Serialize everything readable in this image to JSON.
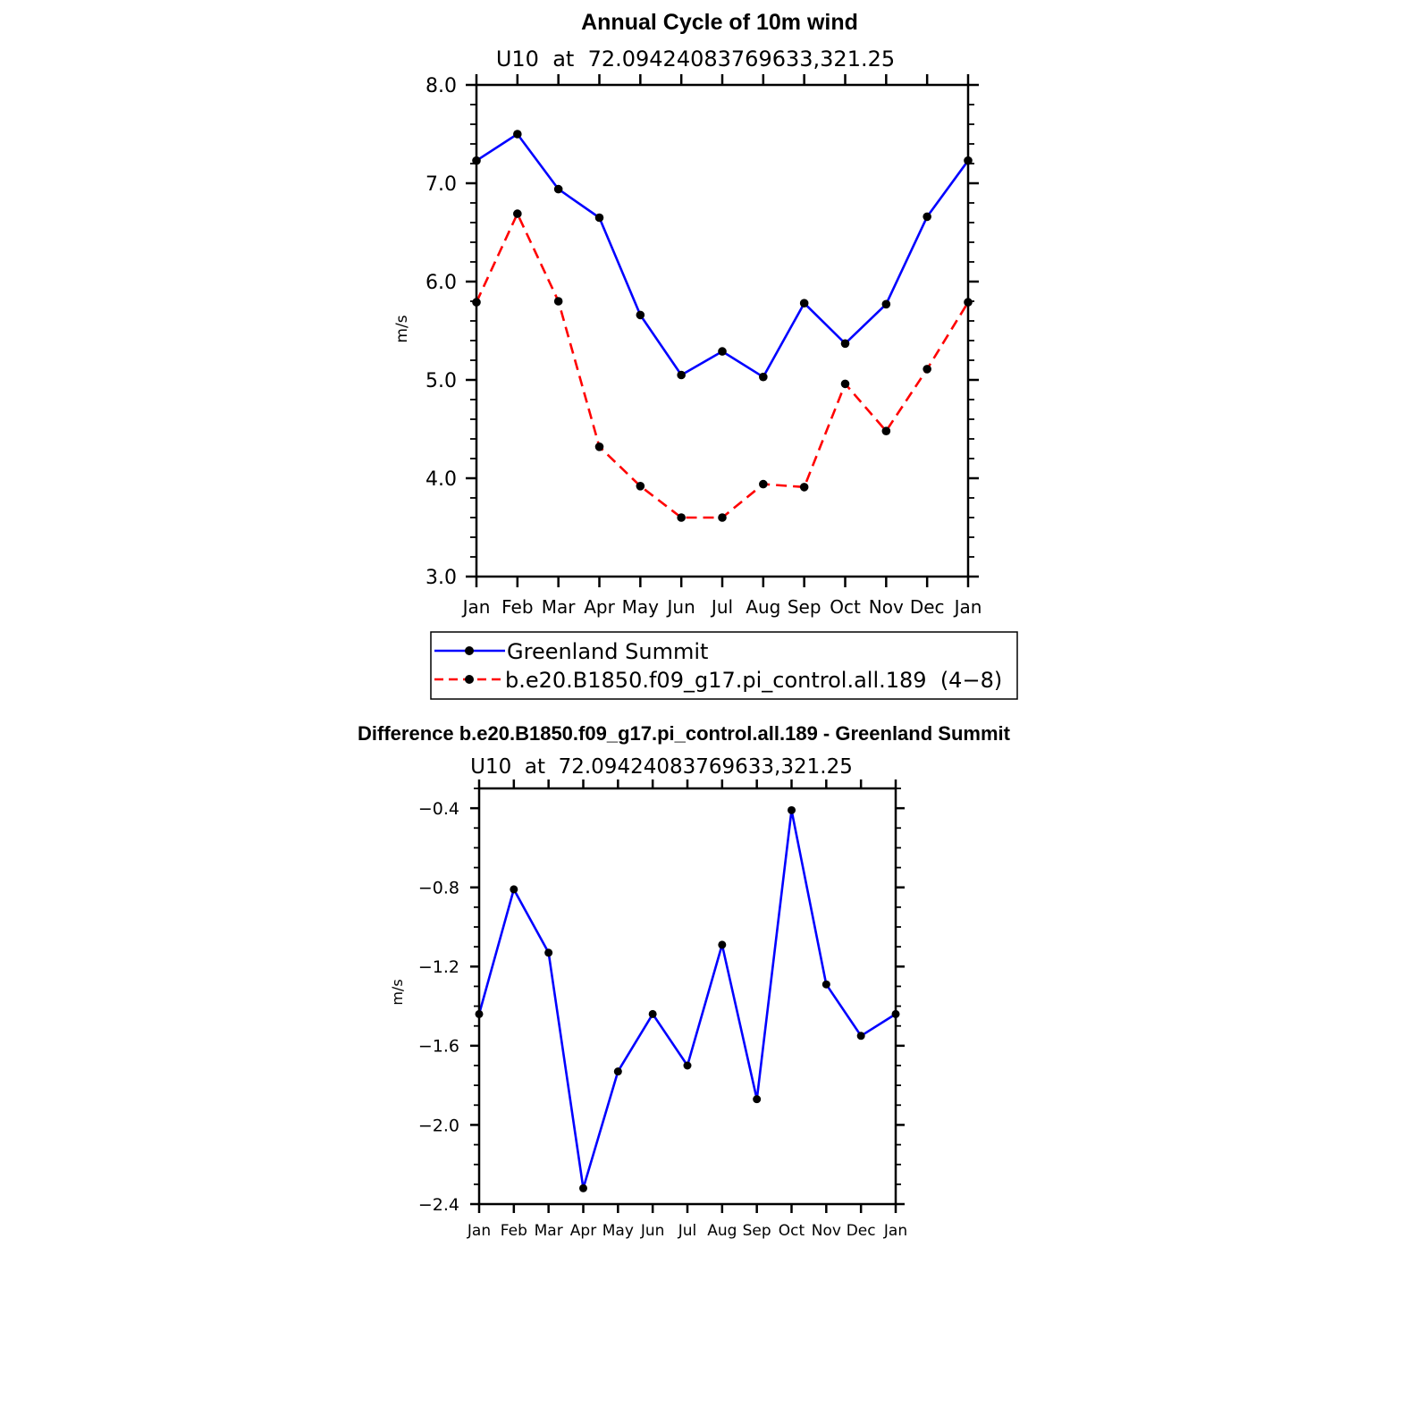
{
  "chart_data": [
    {
      "type": "line",
      "title": "Annual Cycle of 10m wind",
      "subtitle": "U10  at  72.09424083769633,321.25",
      "xlabel": "",
      "ylabel": "m/s",
      "ylim": [
        3.0,
        8.0
      ],
      "yticks": [
        "3.0",
        "4.0",
        "5.0",
        "6.0",
        "7.0",
        "8.0"
      ],
      "ytick_values": [
        3.0,
        4.0,
        5.0,
        6.0,
        7.0,
        8.0
      ],
      "categories": [
        "Jan",
        "Feb",
        "Mar",
        "Apr",
        "May",
        "Jun",
        "Jul",
        "Aug",
        "Sep",
        "Oct",
        "Nov",
        "Dec",
        "Jan"
      ],
      "legend_position": "bottom",
      "series": [
        {
          "name": "Greenland Summit",
          "color": "#0000ff",
          "dash": "solid",
          "values": [
            7.23,
            7.5,
            6.94,
            6.65,
            5.66,
            5.05,
            5.29,
            5.03,
            5.78,
            5.37,
            5.77,
            6.66,
            7.23
          ]
        },
        {
          "name": "b.e20.B1850.f09_g17.pi_control.all.189  (4−8)",
          "color": "#ff0000",
          "dash": "dashed",
          "values": [
            5.79,
            6.69,
            5.8,
            4.32,
            3.92,
            3.6,
            3.6,
            3.94,
            3.91,
            4.96,
            4.48,
            5.11,
            5.79
          ]
        }
      ]
    },
    {
      "type": "line",
      "title": "Difference b.e20.B1850.f09_g17.pi_control.all.189 - Greenland Summit",
      "subtitle": "U10  at  72.09424083769633,321.25",
      "xlabel": "",
      "ylabel": "m/s",
      "ylim": [
        -2.4,
        -0.3
      ],
      "yticks": [
        "−2.4",
        "−2.0",
        "−1.6",
        "−1.2",
        "−0.8",
        "−0.4"
      ],
      "ytick_values": [
        -2.4,
        -2.0,
        -1.6,
        -1.2,
        -0.8,
        -0.4
      ],
      "categories": [
        "Jan",
        "Feb",
        "Mar",
        "Apr",
        "May",
        "Jun",
        "Jul",
        "Aug",
        "Sep",
        "Oct",
        "Nov",
        "Dec",
        "Jan"
      ],
      "series": [
        {
          "name": "Difference",
          "color": "#0000ff",
          "dash": "solid",
          "values": [
            -1.44,
            -0.81,
            -1.13,
            -2.32,
            -1.73,
            -1.44,
            -1.7,
            -1.09,
            -1.87,
            -0.41,
            -1.29,
            -1.55,
            -1.44
          ]
        }
      ]
    }
  ]
}
